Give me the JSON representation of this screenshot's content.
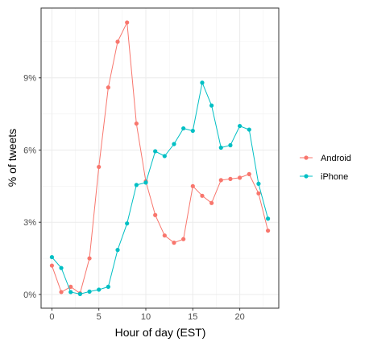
{
  "chart_data": {
    "type": "line",
    "title": "",
    "xlabel": "Hour of day (EST)",
    "ylabel": "% of tweets",
    "xlim": [
      -1.15,
      24.15
    ],
    "ylim": [
      -0.57,
      11.9
    ],
    "x_ticks": [
      0,
      5,
      10,
      15,
      20
    ],
    "x_tick_labels": [
      "0",
      "5",
      "10",
      "15",
      "20"
    ],
    "y_ticks": [
      0,
      3,
      6,
      9
    ],
    "y_tick_labels": [
      "0%",
      "3%",
      "6%",
      "9%"
    ],
    "grid": true,
    "legend_position": "right",
    "x": [
      0,
      1,
      2,
      3,
      4,
      5,
      6,
      7,
      8,
      9,
      10,
      11,
      12,
      13,
      14,
      15,
      16,
      17,
      18,
      19,
      20,
      21,
      22,
      23
    ],
    "series": [
      {
        "name": "Android",
        "color": "#F8766D",
        "values": [
          1.2,
          0.1,
          0.32,
          0.05,
          1.5,
          5.3,
          8.6,
          10.5,
          11.3,
          7.1,
          4.7,
          3.3,
          2.45,
          2.15,
          2.3,
          4.5,
          4.1,
          3.8,
          4.75,
          4.8,
          4.85,
          5.0,
          4.2,
          2.65
        ]
      },
      {
        "name": "iPhone",
        "color": "#00BFC4",
        "values": [
          1.55,
          1.1,
          0.1,
          0.02,
          0.12,
          0.2,
          0.32,
          1.85,
          2.95,
          4.55,
          4.65,
          5.95,
          5.75,
          6.25,
          6.9,
          6.8,
          8.8,
          7.85,
          6.1,
          6.2,
          7.0,
          6.85,
          4.6,
          3.15
        ]
      }
    ]
  }
}
